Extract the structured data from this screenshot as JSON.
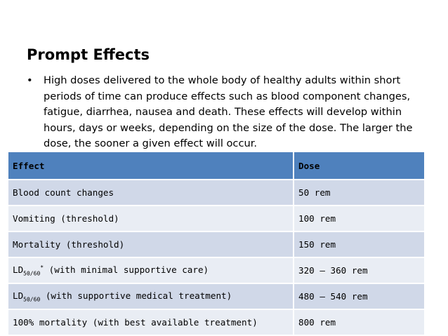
{
  "slide": {
    "title": "Prompt Effects",
    "bullet_mark": "•",
    "bullet_text": "High doses delivered to the whole body of healthy adults within short periods of time can produce effects such as blood component changes, fatigue, diarrhea, nausea and death. These effects will develop within hours, days or weeks, depending on the size of the dose. The larger the dose, the sooner a given effect will occur."
  },
  "table": {
    "header": {
      "effect": "Effect",
      "dose": "Dose"
    },
    "rows": [
      {
        "effect": "Blood count changes",
        "dose": "50 rem"
      },
      {
        "effect": "Vomiting (threshold)",
        "dose": "100 rem"
      },
      {
        "effect": "Mortality (threshold)",
        "dose": "150 rem"
      },
      {
        "effect_prefix": "LD",
        "effect_sub": "50/60",
        "effect_sup": "*",
        "effect_suffix": " (with minimal supportive care)",
        "dose": "320 – 360 rem"
      },
      {
        "effect_prefix": "LD",
        "effect_sub": "50/60",
        "effect_suffix": " (with supportive medical treatment)",
        "dose": "480 – 540 rem"
      },
      {
        "effect": "100% mortality (with best available treatment)",
        "dose": "800 rem"
      }
    ]
  },
  "colors": {
    "header_bg": "#4f81bd",
    "row_alt_bg": "#d0d8e8",
    "row_plain_bg": "#e9edf4"
  }
}
